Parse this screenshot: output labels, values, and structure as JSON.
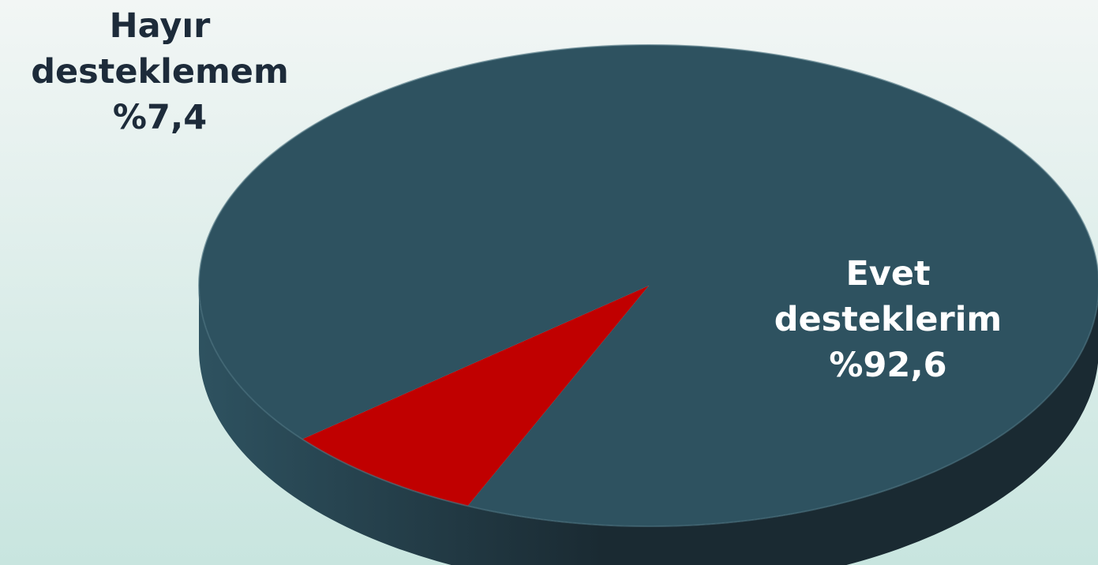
{
  "chart_data": {
    "type": "pie",
    "style": "3d",
    "slices": [
      {
        "label_lines": [
          "Hayır",
          "desteklemem"
        ],
        "value": 7.4,
        "value_text": "%7,4",
        "color": "#c00000",
        "color_dark": "#7a0000"
      },
      {
        "label_lines": [
          "Evet",
          "desteklerim"
        ],
        "value": 92.6,
        "value_text": "%92,6",
        "color": "#2e5260",
        "color_dark": "#1a2a32"
      }
    ],
    "label_colors": {
      "outside": "#1d2b3a",
      "inside": "#ffffff"
    },
    "background": {
      "top": "#f2f6f5",
      "bottom": "#c8e5df"
    }
  }
}
